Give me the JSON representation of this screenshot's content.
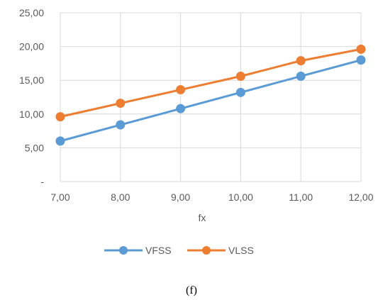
{
  "chart_data": {
    "type": "line",
    "x": [
      7,
      8,
      9,
      10,
      11,
      12
    ],
    "x_tick_labels": [
      "7,00",
      "8,00",
      "9,00",
      "10,00",
      "11,00",
      "12,00"
    ],
    "y_tick_labels": [
      "-",
      "5,00",
      "10,00",
      "15,00",
      "20,00",
      "25,00"
    ],
    "xlabel": "fx",
    "ylabel": "",
    "title": "",
    "xlim": [
      7,
      12
    ],
    "ylim": [
      0,
      25
    ],
    "grid": true,
    "legend_position": "bottom",
    "series": [
      {
        "name": "VFSS",
        "color": "#5b9bd5",
        "values": [
          6.0,
          8.4,
          10.8,
          13.2,
          15.6,
          18.0
        ]
      },
      {
        "name": "VLSS",
        "color": "#ed7d31",
        "values": [
          9.6,
          11.6,
          13.6,
          15.6,
          17.9,
          19.6
        ]
      }
    ]
  },
  "caption": "(f)"
}
